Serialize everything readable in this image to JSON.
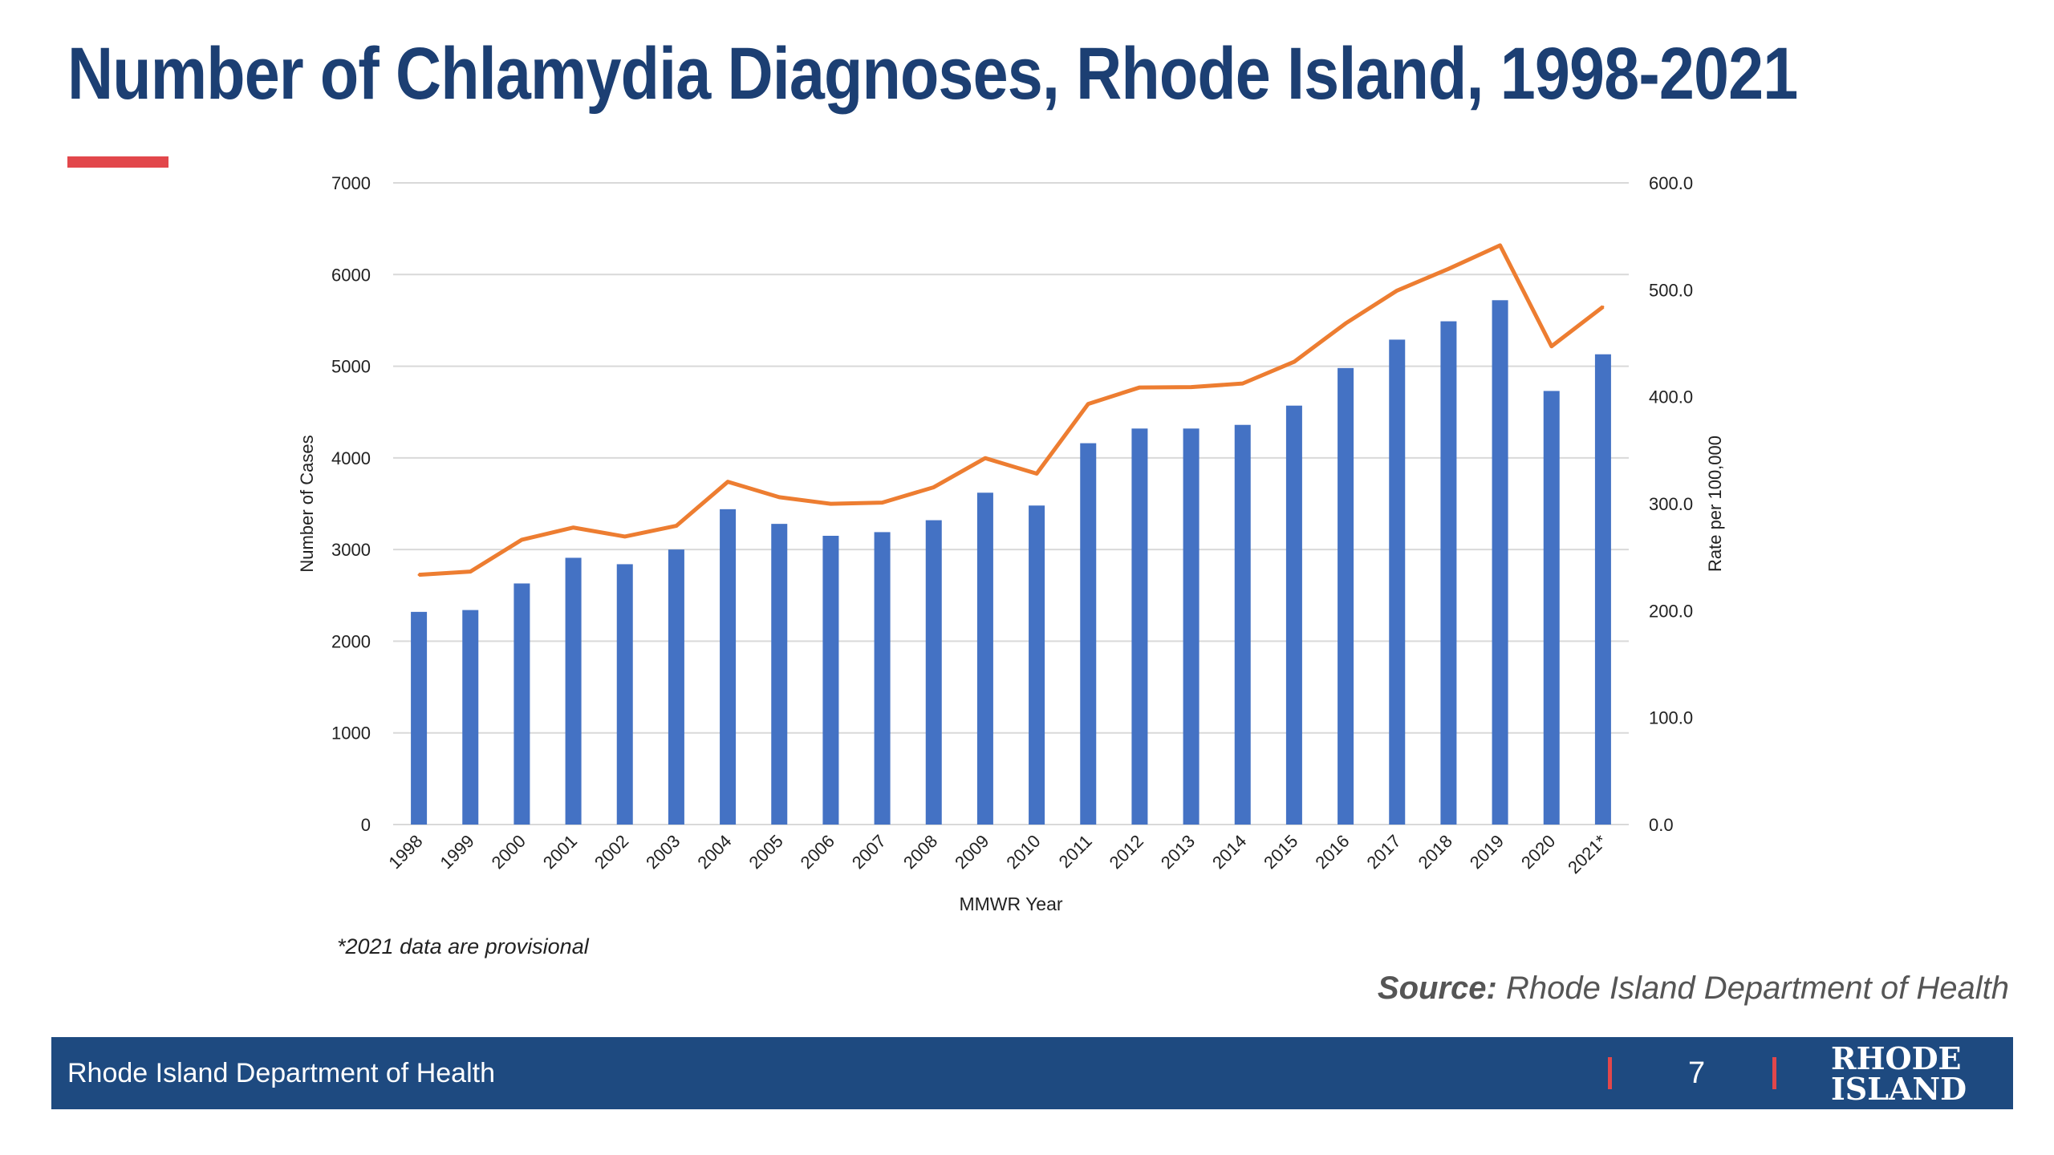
{
  "slide": {
    "title": "Number of Chlamydia Diagnoses, Rhode Island, 1998-2021",
    "footnote": "*2021 data are provisional",
    "source_label": "Source:",
    "source_text": " Rhode Island Department of Health",
    "footer_org": "Rhode Island Department of Health",
    "page_number": "7",
    "logo_line1": "RHODE",
    "logo_line2": "ISLAND"
  },
  "colors": {
    "title": "#1c3f73",
    "accent": "#e2474b",
    "bars": "#4472c4",
    "line": "#ed7d31",
    "footer": "#1e4a80"
  },
  "chart_data": {
    "type": "bar+line",
    "categories": [
      "1998",
      "1999",
      "2000",
      "2001",
      "2002",
      "2003",
      "2004",
      "2005",
      "2006",
      "2007",
      "2008",
      "2009",
      "2010",
      "2011",
      "2012",
      "2013",
      "2014",
      "2015",
      "2016",
      "2017",
      "2018",
      "2019",
      "2020",
      "2021*"
    ],
    "series": [
      {
        "type": "bar",
        "axis": "left",
        "values": [
          2320,
          2340,
          2630,
          2910,
          2840,
          3000,
          3440,
          3280,
          3150,
          3190,
          3320,
          3620,
          3480,
          4160,
          4320,
          4320,
          4360,
          4570,
          4980,
          5290,
          5490,
          5720,
          4730,
          5130
        ]
      },
      {
        "type": "line",
        "axis": "right",
        "values": [
          233.5,
          236.5,
          266.3,
          277.7,
          269.3,
          279.3,
          320.5,
          306.1,
          299.9,
          301.0,
          315.4,
          342.6,
          328.1,
          393.3,
          408.7,
          409.0,
          412.4,
          432.7,
          468.6,
          499.3,
          519.6,
          541.6,
          447.2,
          484.1
        ]
      }
    ],
    "xlabel": "MMWR Year",
    "ylabel_left": "Number of Cases",
    "ylabel_right": "Rate per 100,000",
    "ylim_left": [
      0,
      7000
    ],
    "yticks_left": [
      "0",
      "1000",
      "2000",
      "3000",
      "4000",
      "5000",
      "6000",
      "7000"
    ],
    "ylim_right": [
      0,
      600
    ],
    "yticks_right": [
      "0.0",
      "100.0",
      "200.0",
      "300.0",
      "400.0",
      "500.0",
      "600.0"
    ],
    "grid": true,
    "legend": "none"
  }
}
